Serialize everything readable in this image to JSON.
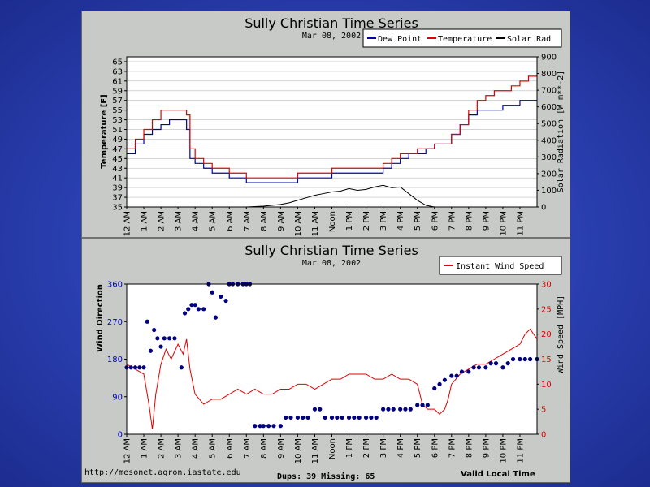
{
  "background_color": "#3046b8",
  "panel_color": "#c8cac8",
  "footer": {
    "url": "http://mesonet.agron.iastate.edu",
    "stats": "Dups: 39 Missing: 65",
    "valid": "Valid Local Time"
  },
  "chart_data": [
    {
      "type": "line",
      "title": "Sully Christian Time Series",
      "subtitle": "Mar 08, 2002",
      "ylabel": "Temperature [F]",
      "y2label": "Solar Radiation [W m**-2]",
      "ylim": [
        35,
        66
      ],
      "y_ticks": [
        "35",
        "37",
        "39",
        "41",
        "43",
        "45",
        "47",
        "49",
        "51",
        "53",
        "55",
        "57",
        "59",
        "61",
        "63",
        "65"
      ],
      "y2lim": [
        0,
        900
      ],
      "y2_ticks": [
        "0",
        "100",
        "200",
        "300",
        "400",
        "500",
        "600",
        "700",
        "800",
        "900"
      ],
      "x_ticks": [
        "12 AM",
        "1 AM",
        "2 AM",
        "3 AM",
        "4 AM",
        "5 AM",
        "6 AM",
        "7 AM",
        "8 AM",
        "9 AM",
        "10 AM",
        "11 AM",
        "Noon",
        "1 PM",
        "2 PM",
        "3 PM",
        "4 PM",
        "5 PM",
        "6 PM",
        "7 PM",
        "8 PM",
        "9 PM",
        "10 PM",
        "11 PM"
      ],
      "xlim_hours": [
        0,
        24
      ],
      "legend": [
        "Dew Point",
        "Temperature",
        "Solar Rad"
      ],
      "grid": true,
      "series": [
        {
          "name": "Dew Point",
          "color": "#0000b0",
          "axis": "left",
          "x": [
            0,
            0.5,
            1,
            1.5,
            2,
            2.5,
            3,
            3.5,
            3.7,
            4,
            4.5,
            5,
            6,
            7,
            8,
            9,
            9.5,
            10,
            11,
            12,
            13,
            14,
            15,
            15.5,
            16,
            16.5,
            17,
            17.5,
            18,
            18.5,
            19,
            19.5,
            20,
            20.5,
            21,
            21.5,
            22,
            22.5,
            23,
            23.5,
            24
          ],
          "values": [
            46,
            48,
            50,
            51,
            52,
            53,
            53,
            51,
            45,
            44,
            43,
            42,
            41,
            40,
            40,
            40,
            40,
            41,
            41,
            42,
            42,
            42,
            43,
            44,
            45,
            46,
            46,
            47,
            48,
            48,
            50,
            52,
            54,
            55,
            55,
            55,
            56,
            56,
            57,
            57,
            57
          ]
        },
        {
          "name": "Temperature",
          "color": "#e00000",
          "axis": "left",
          "x": [
            0,
            0.5,
            1,
            1.5,
            2,
            2.5,
            3,
            3.5,
            3.7,
            4,
            4.5,
            5,
            6,
            7,
            8,
            9,
            10,
            11,
            12,
            13,
            14,
            15,
            15.5,
            16,
            16.5,
            17,
            17.5,
            18,
            18.5,
            19,
            19.5,
            20,
            20.5,
            21,
            21.5,
            22,
            22.5,
            23,
            23.5,
            24
          ],
          "values": [
            47,
            49,
            51,
            53,
            55,
            55,
            55,
            54,
            47,
            45,
            44,
            43,
            42,
            41,
            41,
            41,
            42,
            42,
            43,
            43,
            43,
            44,
            45,
            46,
            46,
            47,
            47,
            48,
            48,
            50,
            52,
            55,
            57,
            58,
            59,
            59,
            60,
            61,
            62,
            62
          ]
        },
        {
          "name": "Solar Rad",
          "color": "#000000",
          "axis": "right",
          "x": [
            7,
            8,
            9,
            9.5,
            10,
            10.5,
            11,
            11.5,
            12,
            12.5,
            13,
            13.5,
            14,
            14.5,
            15,
            15.5,
            16,
            16.5,
            17,
            17.5,
            18
          ],
          "values": [
            0,
            5,
            15,
            25,
            40,
            55,
            70,
            80,
            90,
            95,
            110,
            100,
            105,
            120,
            130,
            115,
            120,
            80,
            40,
            10,
            0
          ]
        }
      ]
    },
    {
      "type": "scatter",
      "title": "Sully Christian Time Series",
      "subtitle": "Mar 08, 2002",
      "ylabel": "Wind Direction",
      "y2label": "Wind Speed [MPH]",
      "ylim": [
        0,
        360
      ],
      "y_ticks": [
        "0",
        "90",
        "180",
        "270",
        "360"
      ],
      "y2lim": [
        0,
        30
      ],
      "y2_ticks": [
        "0",
        "5",
        "10",
        "15",
        "20",
        "25",
        "30"
      ],
      "x_ticks": [
        "12 AM",
        "1 AM",
        "2 AM",
        "3 AM",
        "4 AM",
        "5 AM",
        "6 AM",
        "7 AM",
        "8 AM",
        "9 AM",
        "10 AM",
        "11 AM",
        "Noon",
        "1 PM",
        "2 PM",
        "3 PM",
        "4 PM",
        "5 PM",
        "6 PM",
        "7 PM",
        "8 PM",
        "9 PM",
        "10 PM",
        "11 PM"
      ],
      "legend": [
        "Instant Wind Speed"
      ],
      "grid": false,
      "series": [
        {
          "name": "Instant Wind Speed",
          "color": "#e00000",
          "axis": "right",
          "type": "line",
          "x": [
            0,
            0.5,
            1,
            1.3,
            1.5,
            1.7,
            2,
            2.3,
            2.6,
            3,
            3.3,
            3.5,
            3.7,
            4,
            4.5,
            5,
            5.5,
            6,
            6.5,
            7,
            7.5,
            8,
            8.5,
            9,
            9.5,
            10,
            10.5,
            11,
            11.5,
            12,
            12.5,
            13,
            13.5,
            14,
            14.5,
            15,
            15.5,
            16,
            16.5,
            17,
            17.3,
            17.6,
            18,
            18.3,
            18.6,
            18.8,
            19,
            19.5,
            20,
            20.5,
            21,
            21.5,
            22,
            22.5,
            23,
            23.3,
            23.6,
            24
          ],
          "values": [
            14,
            13,
            12,
            6,
            1,
            8,
            14,
            17,
            15,
            18,
            16,
            19,
            13,
            8,
            6,
            7,
            7,
            8,
            9,
            8,
            9,
            8,
            8,
            9,
            9,
            10,
            10,
            9,
            10,
            11,
            11,
            12,
            12,
            12,
            11,
            11,
            12,
            11,
            11,
            10,
            6,
            5,
            5,
            4,
            5,
            7,
            10,
            12,
            13,
            14,
            14,
            15,
            16,
            17,
            18,
            20,
            21,
            19
          ]
        },
        {
          "name": "Wind Direction",
          "color": "#000080",
          "axis": "left",
          "type": "scatter",
          "x": [
            0,
            0.25,
            0.5,
            0.75,
            1,
            1.2,
            1.4,
            1.6,
            1.8,
            2,
            2.2,
            2.5,
            2.8,
            3.2,
            3.4,
            3.6,
            3.8,
            4,
            4.2,
            4.5,
            4.8,
            5,
            5.2,
            5.5,
            5.8,
            6,
            6.2,
            6.5,
            6.8,
            7,
            7.2,
            7.5,
            7.8,
            8,
            8.3,
            8.6,
            9,
            9.3,
            9.6,
            10,
            10.3,
            10.6,
            11,
            11.3,
            11.6,
            12,
            12.3,
            12.6,
            13,
            13.3,
            13.6,
            14,
            14.3,
            14.6,
            15,
            15.3,
            15.6,
            16,
            16.3,
            16.6,
            17,
            17.3,
            17.6,
            18,
            18.3,
            18.6,
            19,
            19.3,
            19.6,
            20,
            20.3,
            20.6,
            21,
            21.3,
            21.6,
            22,
            22.3,
            22.6,
            23,
            23.3,
            23.6,
            24
          ],
          "values": [
            160,
            160,
            160,
            160,
            160,
            270,
            200,
            250,
            230,
            210,
            230,
            230,
            230,
            160,
            290,
            300,
            310,
            310,
            300,
            300,
            360,
            340,
            280,
            330,
            320,
            360,
            360,
            360,
            360,
            360,
            360,
            20,
            20,
            20,
            20,
            20,
            20,
            40,
            40,
            40,
            40,
            40,
            60,
            60,
            40,
            40,
            40,
            40,
            40,
            40,
            40,
            40,
            40,
            40,
            60,
            60,
            60,
            60,
            60,
            60,
            70,
            70,
            70,
            110,
            120,
            130,
            140,
            140,
            150,
            150,
            160,
            160,
            160,
            170,
            170,
            160,
            170,
            180,
            180,
            180,
            180,
            180
          ]
        }
      ]
    }
  ]
}
